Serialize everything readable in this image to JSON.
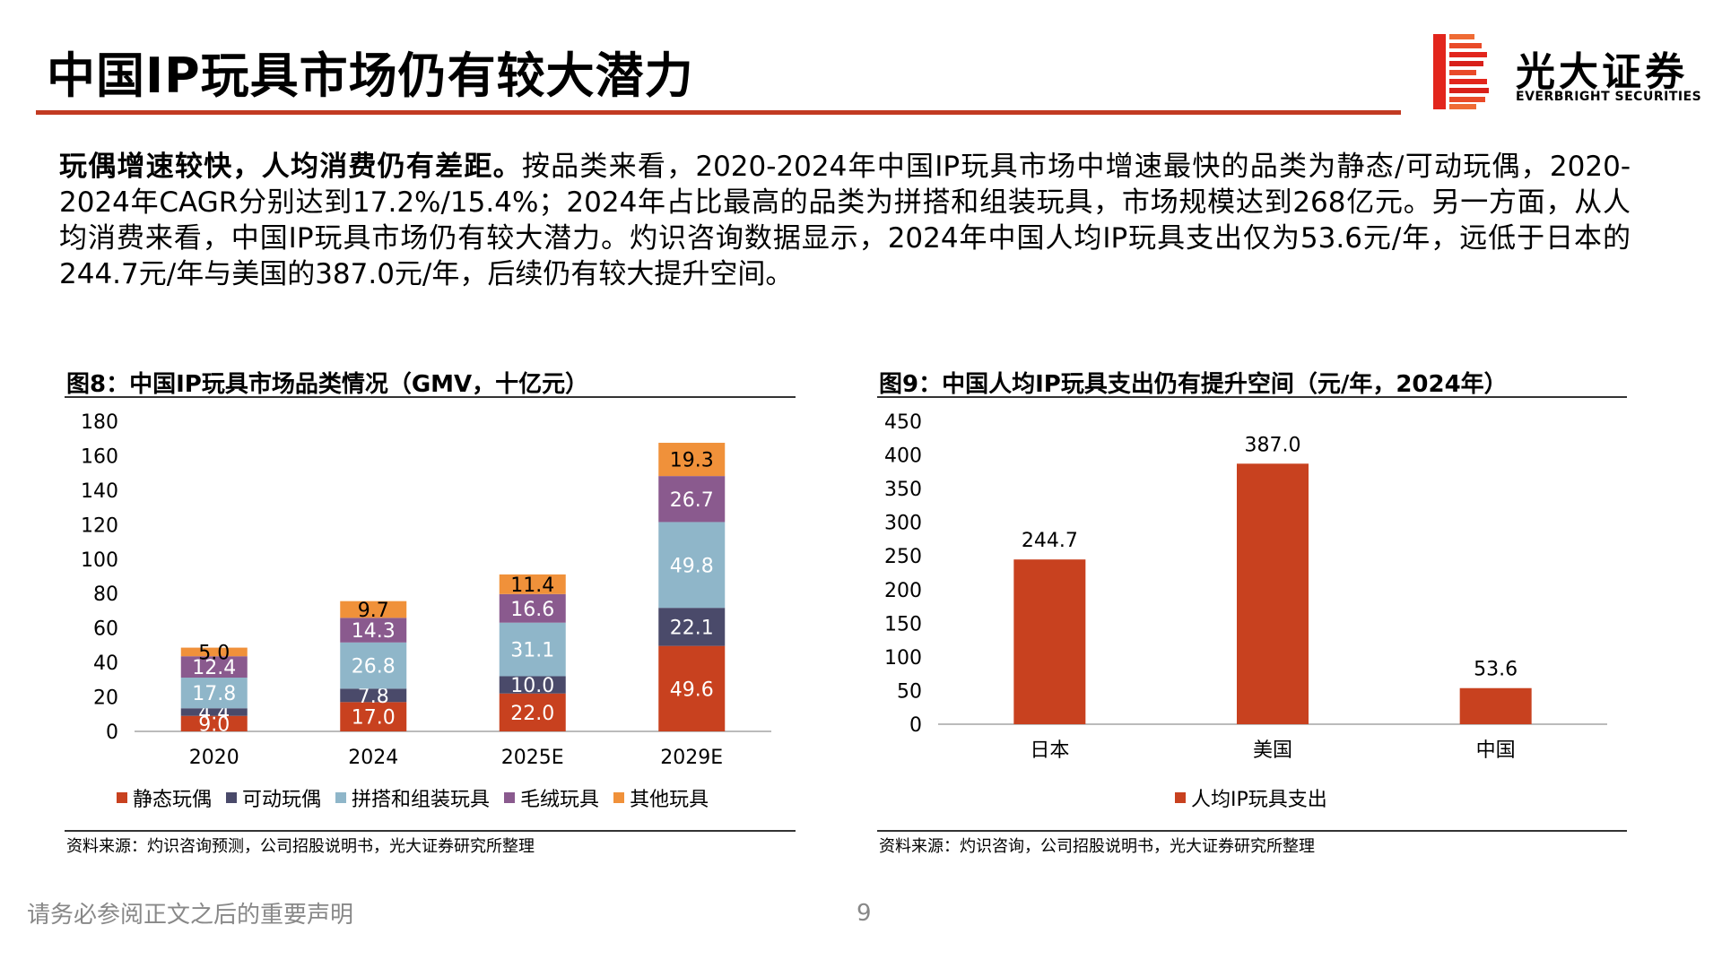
{
  "header": {
    "title": "中国IP玩具市场仍有较大潜力",
    "brand_cn": "光大证券",
    "brand_en": "EVERBRIGHT SECURITIES",
    "accent_color": "#c23a22"
  },
  "intro": {
    "bold_lead": "玩偶增速较快，人均消费仍有差距。",
    "body": "按品类来看，2020-2024年中国IP玩具市场中增速最快的品类为静态/可动玩偶，2020-2024年CAGR分别达到17.2%/15.4%；2024年占比最高的品类为拼搭和组装玩具，市场规模达到268亿元。另一方面，从人均消费来看，中国IP玩具市场仍有较大潜力。灼识咨询数据显示，2024年中国人均IP玩具支出仅为53.6元/年，远低于日本的244.7元/年与美国的387.0元/年，后续仍有较大提升空间。"
  },
  "figure8": {
    "title": "图8：中国IP玩具市场品类情况（GMV，十亿元）",
    "source": "资料来源：灼识咨询预测，公司招股说明书，光大证券研究所整理"
  },
  "figure9": {
    "title": "图9：中国人均IP玩具支出仍有提升空间（元/年，2024年）",
    "source": "资料来源：灼识咨询，公司招股说明书，光大证券研究所整理"
  },
  "footer": {
    "disclaimer": "请务必参阅正文之后的重要声明",
    "page": "9"
  },
  "chart_data": [
    {
      "type": "bar",
      "stacked": true,
      "categories": [
        "2020",
        "2024",
        "2025E",
        "2029E"
      ],
      "series": [
        {
          "name": "静态玩偶",
          "color": "#c8411f",
          "values": [
            9.0,
            17.0,
            22.0,
            49.6
          ]
        },
        {
          "name": "可动玩偶",
          "color": "#4a4a6a",
          "values": [
            4.4,
            7.8,
            10.0,
            22.1
          ]
        },
        {
          "name": "拼搭和组装玩具",
          "color": "#8fb6c9",
          "values": [
            17.8,
            26.8,
            31.1,
            49.8
          ]
        },
        {
          "name": "毛绒玩具",
          "color": "#8a5a8e",
          "values": [
            12.4,
            14.3,
            16.6,
            26.7
          ]
        },
        {
          "name": "其他玩具",
          "color": "#f0913a",
          "values": [
            5.0,
            9.7,
            11.4,
            19.3
          ]
        }
      ],
      "yticks": [
        "0",
        "20",
        "40",
        "60",
        "80",
        "100",
        "120",
        "140",
        "160",
        "180"
      ],
      "ylim": [
        0,
        180
      ],
      "legend": "bottom"
    },
    {
      "type": "bar",
      "categories": [
        "日本",
        "美国",
        "中国"
      ],
      "series": [
        {
          "name": "人均IP玩具支出",
          "color": "#c8411f",
          "values": [
            244.7,
            387.0,
            53.6
          ]
        }
      ],
      "yticks": [
        "0",
        "50",
        "100",
        "150",
        "200",
        "250",
        "300",
        "350",
        "400",
        "450"
      ],
      "ylim": [
        0,
        450
      ],
      "legend": "bottom"
    }
  ]
}
